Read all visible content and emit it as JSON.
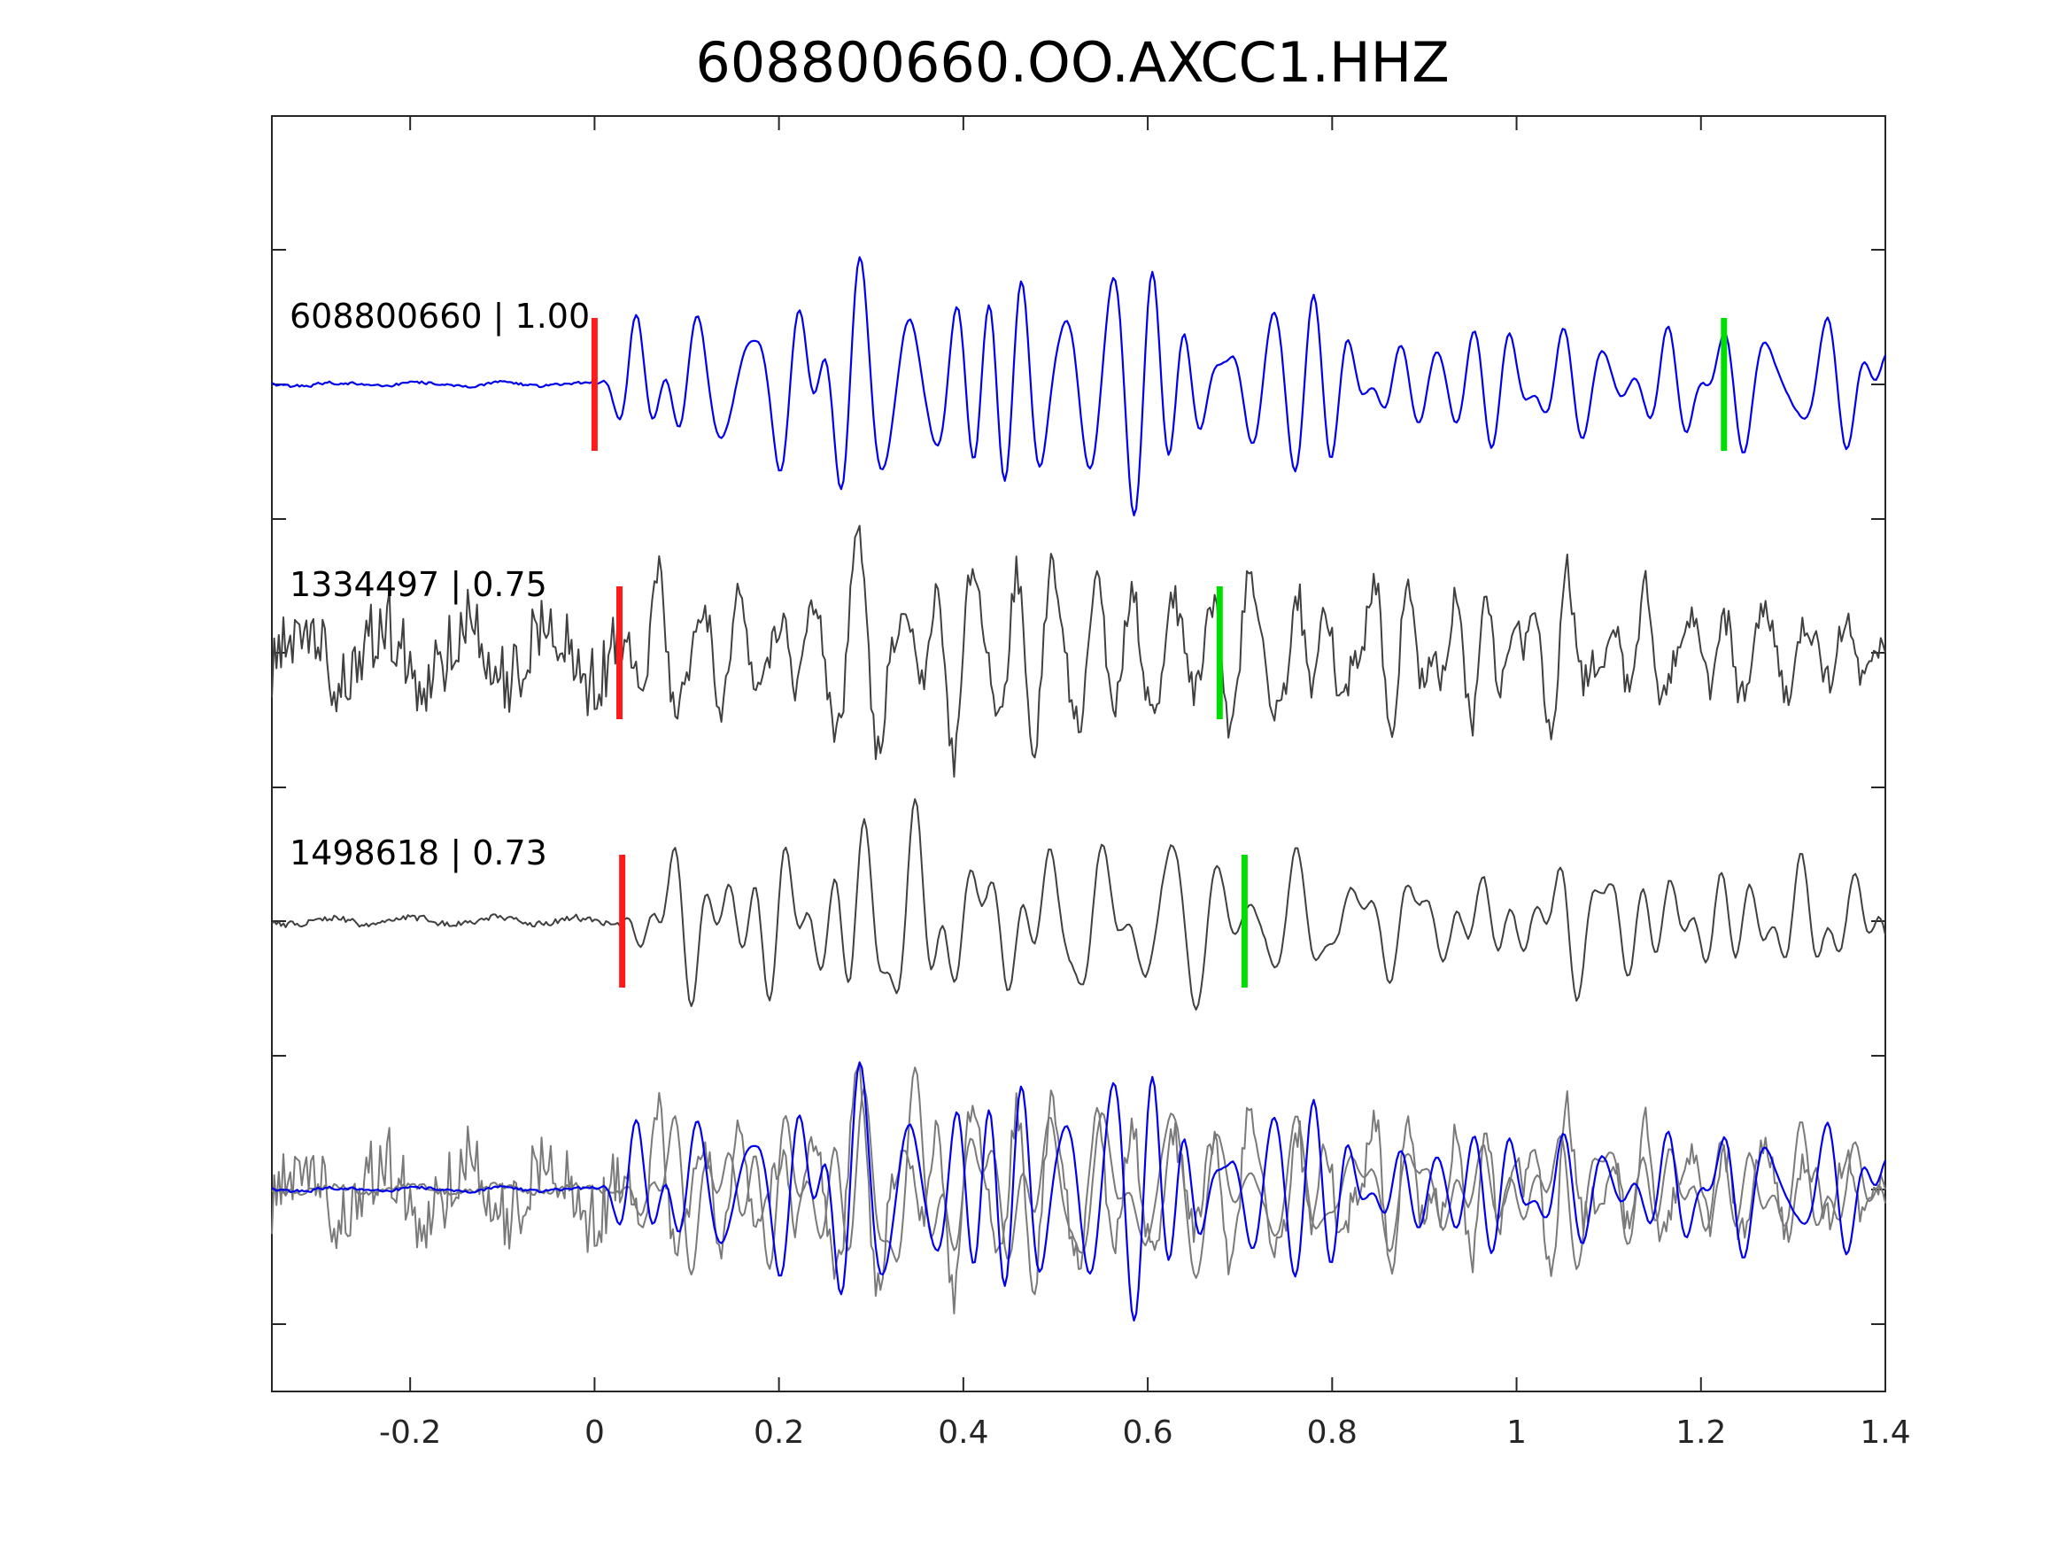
{
  "chart_data": {
    "type": "line",
    "title": "608800660.OO.AXCC1.HHZ",
    "xlabel": "",
    "ylabel": "",
    "xlim": [
      -0.35,
      1.4
    ],
    "x_ticks": [
      "-0.2",
      "0",
      "0.2",
      "0.4",
      "0.6",
      "0.8",
      "1",
      "1.2",
      "1.4"
    ],
    "x_tick_values": [
      -0.2,
      0,
      0.2,
      0.4,
      0.6,
      0.8,
      1,
      1.2,
      1.4
    ],
    "y_ticks_shown_without_labels": true,
    "grid": false,
    "colors": {
      "reference": "#0000ee",
      "match": "#404040",
      "overlay_match": "#7a7a7a",
      "p_pick": "#ff1a1a",
      "s_pick": "#00dd00",
      "axes": "#262626"
    },
    "traces": [
      {
        "label": "608800660 | 1.00",
        "id": "608800660",
        "correlation": "1.00",
        "color": "blue",
        "p_pick": 0.0,
        "s_pick": 1.225
      },
      {
        "label": "1334497 | 0.75",
        "id": "1334497",
        "correlation": "0.75",
        "color": "dark-gray",
        "p_pick": 0.027,
        "s_pick": 0.678
      },
      {
        "label": "1498618 | 0.73",
        "id": "1498618",
        "correlation": "0.73",
        "color": "dark-gray",
        "p_pick": 0.03,
        "s_pick": 0.705
      }
    ],
    "overlay": {
      "description_shown": false,
      "series": [
        "608800660",
        "1334497",
        "1498618"
      ]
    }
  }
}
